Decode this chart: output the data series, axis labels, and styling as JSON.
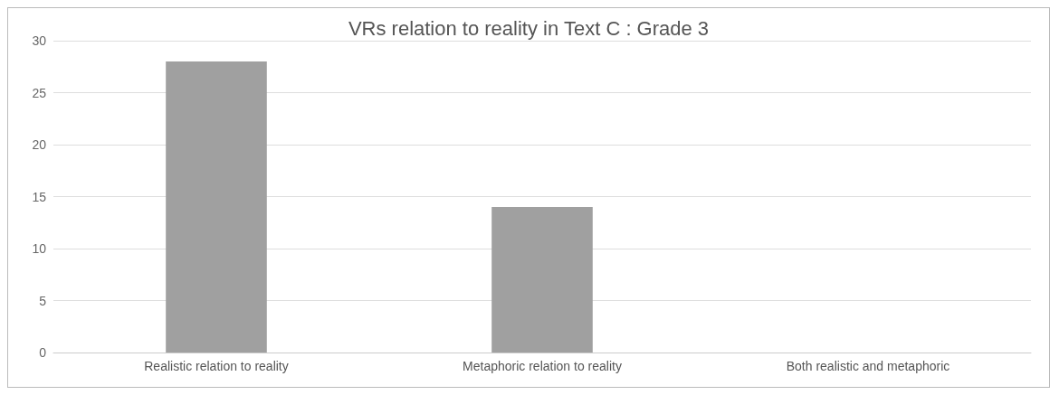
{
  "chart_data": {
    "type": "bar",
    "title": "VRs relation to reality in Text C : Grade 3",
    "categories": [
      "Realistic relation to reality",
      "Metaphoric relation to reality",
      "Both realistic and metaphoric"
    ],
    "values": [
      28,
      14,
      0
    ],
    "color": "#a0a0a0",
    "ylim": [
      0,
      30
    ],
    "yticks": [
      0,
      5,
      10,
      15,
      20,
      25,
      30
    ],
    "grid": "y"
  }
}
